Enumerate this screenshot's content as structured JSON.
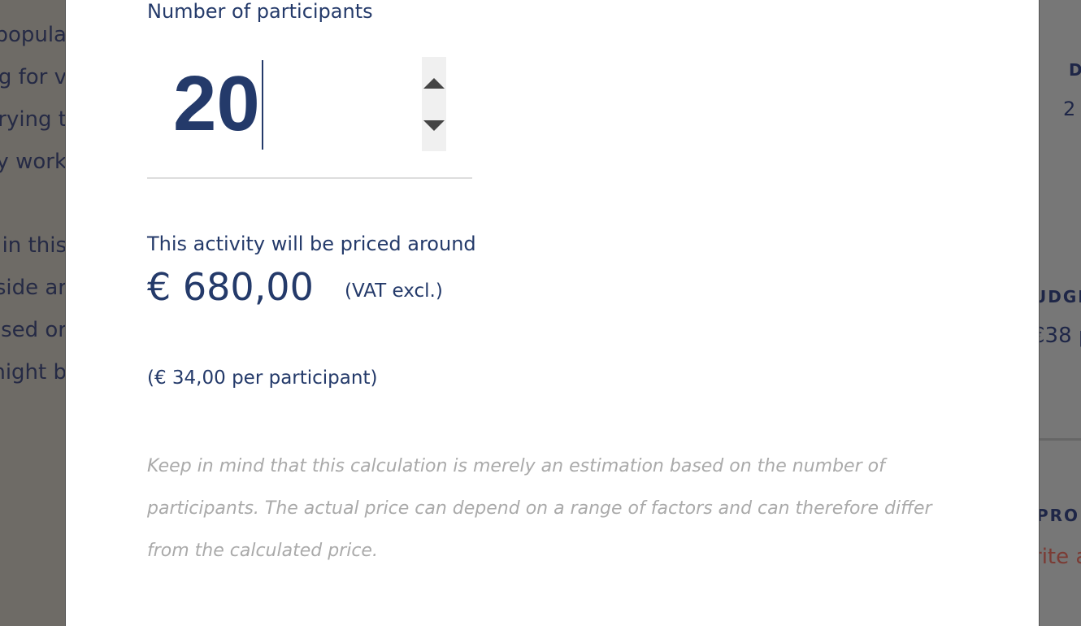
{
  "background_left": [
    "popula",
    "ng for v",
    "trying t",
    "by work",
    "in this",
    "side ar",
    "ised or",
    "night b"
  ],
  "background_right": {
    "d": "D",
    "two": "2",
    "budget": "UDGE",
    "budget_value": "€38 p",
    "pro": "PRO",
    "write": "rite a"
  },
  "modal": {
    "participants_label": "Number of participants",
    "participants_value": "20",
    "price_intro": "This activity will be priced around",
    "price": "€ 680,00",
    "vat": "(VAT excl.)",
    "per_participant": "(€ 34,00 per participant)",
    "disclaimer": "Keep in mind that this calculation is merely an estimation based on the number of participants. The actual price can depend on a range of factors and can therefore differ from the calculated price."
  },
  "colors": {
    "text": "#243a6a",
    "accent_red": "#b0473a"
  }
}
